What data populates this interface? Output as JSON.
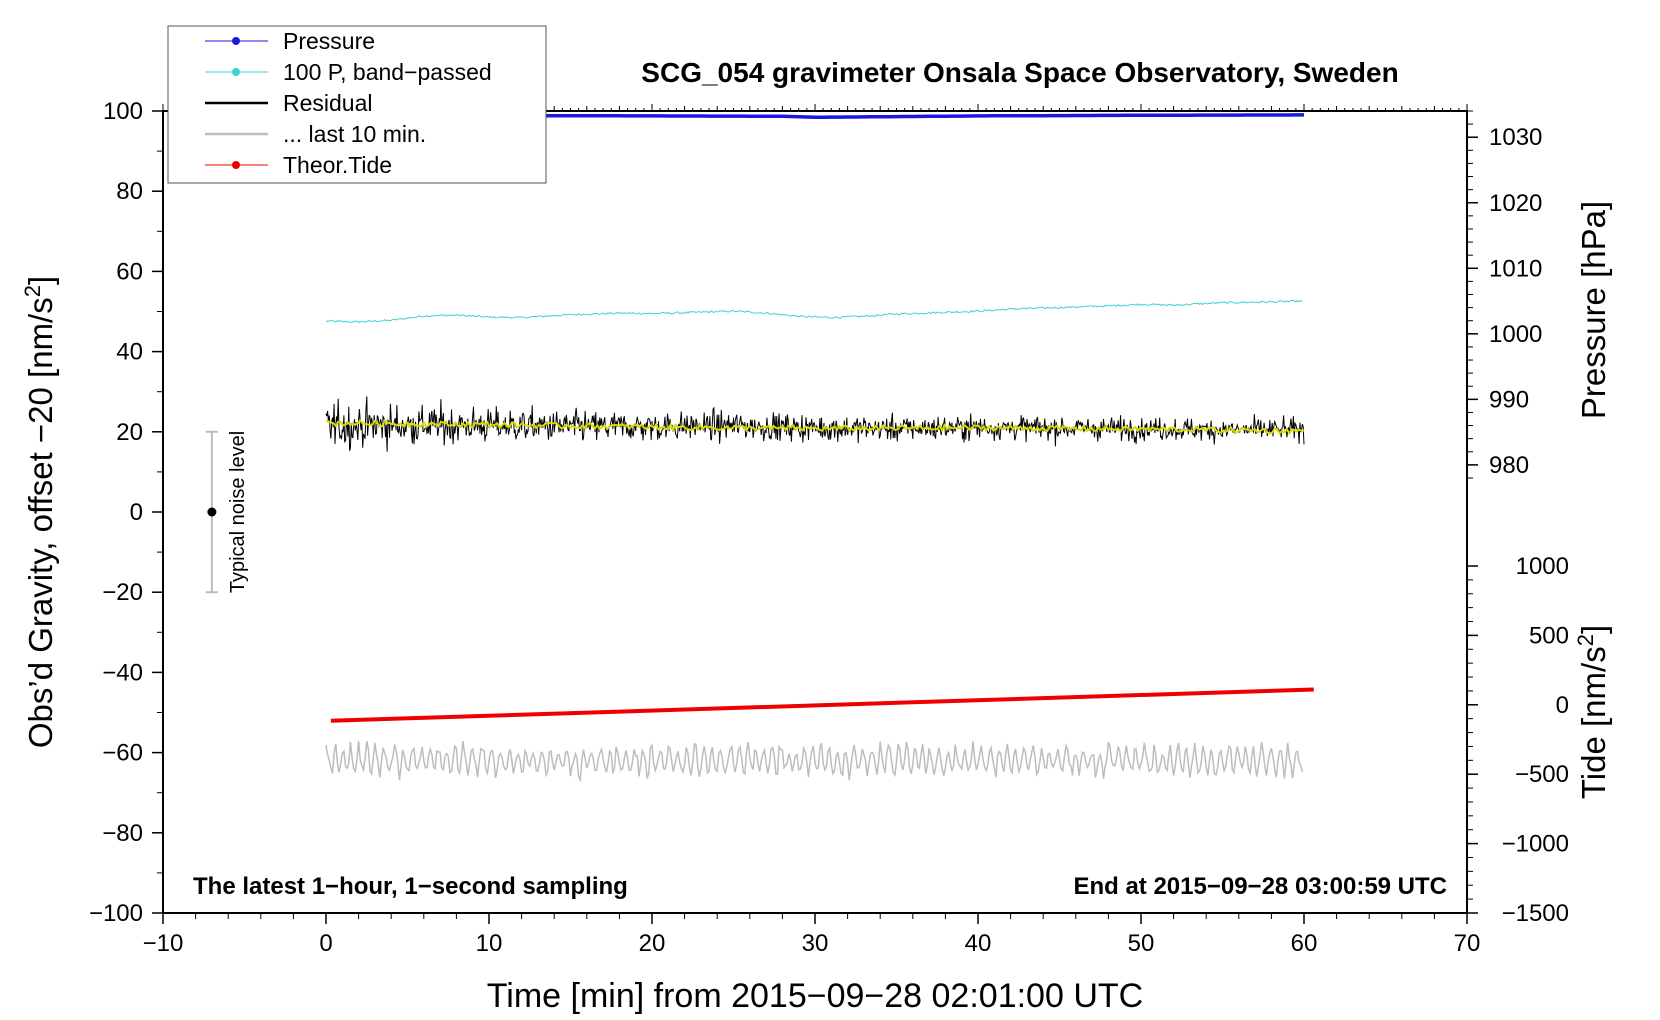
{
  "chart_data": {
    "type": "line",
    "title": "SCG_054 gravimeter Onsala Space Observatory, Sweden",
    "xlabel": "Time [min] from 2015−09−28 02:01:00 UTC",
    "ylabel_left_main": "Obs’d Gravity, offset −20 [nm/s",
    "ylabel_left_sup": "2",
    "ylabel_left_end": "]",
    "ylabel_right_pressure": "Pressure [hPa]",
    "ylabel_right_tide_main": "Tide [nm/s",
    "ylabel_right_tide_sup": "2",
    "ylabel_right_tide_end": "]",
    "xlim": [
      -10,
      70
    ],
    "ylim": [
      -100,
      100
    ],
    "pressure_lim": [
      978,
      1034
    ],
    "tide_lim": [
      -1500,
      1000
    ],
    "x_ticks": [
      -10,
      0,
      10,
      20,
      30,
      40,
      50,
      60,
      70
    ],
    "x_tick_labels": [
      "−10",
      "0",
      "10",
      "20",
      "30",
      "40",
      "50",
      "60",
      "70"
    ],
    "y_ticks": [
      -100,
      -80,
      -60,
      -40,
      -20,
      0,
      20,
      40,
      60,
      80,
      100
    ],
    "y_tick_labels": [
      "−100",
      "−80",
      "−60",
      "−40",
      "−20",
      "0",
      "20",
      "40",
      "60",
      "80",
      "100"
    ],
    "pressure_ticks": [
      980,
      990,
      1000,
      1010,
      1020,
      1030
    ],
    "pressure_tick_labels": [
      "980",
      "990",
      "1000",
      "1010",
      "1020",
      "1030"
    ],
    "tide_ticks": [
      -1500,
      -1000,
      -500,
      0,
      500,
      1000
    ],
    "tide_tick_labels": [
      "−1500",
      "−1000",
      "−500",
      "0",
      "500",
      "1000"
    ],
    "annotations": {
      "bottom_left": "The latest 1−hour, 1−second sampling",
      "bottom_right": "End at 2015−09−28 03:00:59 UTC",
      "noise_label": "Typical noise level"
    },
    "noise_bar": {
      "x": -7,
      "center": 0,
      "low": -20,
      "high": 20
    },
    "legend": {
      "position": "top-left",
      "entries": [
        {
          "label": "Pressure",
          "color": "#1a1adf",
          "marker": true
        },
        {
          "label": "100 P, band−passed",
          "color": "#3fd1cf",
          "marker": true
        },
        {
          "label": "Residual",
          "color": "#000000",
          "marker": false
        },
        {
          "label": "... last 10 min.",
          "color": "#bdbdbd",
          "marker": false
        },
        {
          "label": "Theor.Tide",
          "color": "#ee0000",
          "marker": true
        }
      ]
    },
    "series": [
      {
        "name": "Pressure",
        "color": "#1a1adf",
        "axis": "pressure",
        "x": [
          0,
          10,
          20,
          28,
          30,
          33,
          40,
          50,
          60
        ],
        "values": [
          1033.3,
          1033.3,
          1033.25,
          1033.2,
          1033.05,
          1033.1,
          1033.25,
          1033.35,
          1033.4
        ]
      },
      {
        "name": "100 P, band−passed",
        "color": "#3fd1cf",
        "axis": "left",
        "x": [
          0,
          2,
          4,
          6,
          8,
          10,
          12,
          15,
          18,
          20,
          22,
          25,
          27,
          29,
          31,
          33,
          35,
          38,
          40,
          42,
          45,
          48,
          50,
          52,
          55,
          58,
          60
        ],
        "values": [
          47.6,
          47.4,
          47.8,
          48.9,
          49.1,
          48.6,
          48.5,
          49.2,
          49.6,
          49.5,
          49.7,
          50.1,
          49.6,
          48.8,
          48.5,
          48.8,
          49.4,
          49.8,
          50.1,
          50.6,
          51.0,
          51.4,
          51.8,
          51.6,
          52.2,
          52.4,
          52.6
        ]
      },
      {
        "name": "Residual",
        "color": "#000000",
        "axis": "left",
        "x": [
          0,
          5,
          10,
          15,
          20,
          25,
          30,
          35,
          40,
          45,
          50,
          55,
          60
        ],
        "values": [
          21.5,
          21.7,
          21.6,
          21.3,
          21.3,
          21.5,
          21.0,
          20.8,
          21.1,
          20.9,
          20.8,
          20.5,
          20.5
        ],
        "amplitude": [
          9,
          8.5,
          7,
          6.5,
          6,
          5.8,
          5.5,
          5.2,
          5,
          4.8,
          4.7,
          4.6,
          4.5
        ]
      },
      {
        "name": "Smoothed residual",
        "color": "#d8d800",
        "axis": "left",
        "x": [
          0,
          10,
          20,
          30,
          40,
          50,
          60
        ],
        "values": [
          22.2,
          21.8,
          21.2,
          20.8,
          21.0,
          20.7,
          20.2
        ]
      },
      {
        "name": "... last 10 min.",
        "color": "#bdbdbd",
        "axis": "left",
        "x": [
          0,
          60
        ],
        "values": [
          -62,
          -62
        ],
        "amplitude": 4.5
      },
      {
        "name": "Theor.Tide",
        "color": "#ee0000",
        "axis": "tide",
        "x": [
          0.3,
          60.6
        ],
        "values": [
          -115,
          110
        ]
      }
    ]
  }
}
